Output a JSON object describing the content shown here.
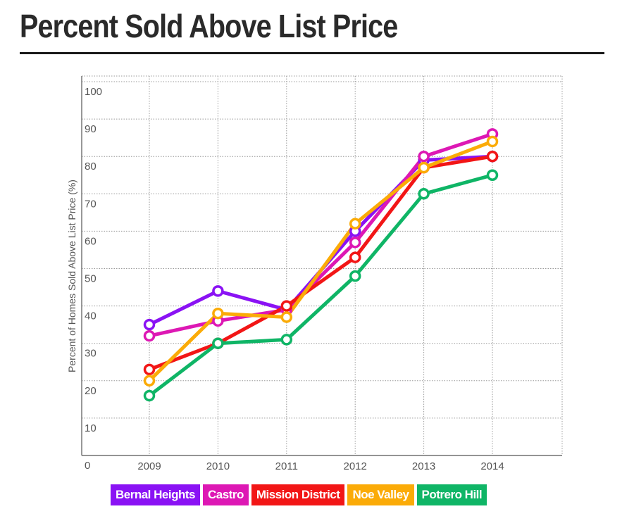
{
  "page": {
    "title": "Percent Sold Above List Price"
  },
  "chart_data": {
    "type": "line",
    "title": "Percent Sold Above List Price",
    "xlabel": "",
    "ylabel": "Percent of Homes Sold Above List Price (%)",
    "x": [
      "2009",
      "2010",
      "2011",
      "2012",
      "2013",
      "2014"
    ],
    "ylim": [
      0,
      100
    ],
    "y_ticks": [
      "0",
      "10",
      "20",
      "30",
      "40",
      "50",
      "60",
      "70",
      "80",
      "90",
      "100"
    ],
    "grid": true,
    "legend_position": "bottom",
    "series": [
      {
        "name": "Bernal Heights",
        "color": "#8a12f4",
        "values": [
          35,
          44,
          39,
          60,
          79,
          80
        ]
      },
      {
        "name": "Castro",
        "color": "#dd18b4",
        "values": [
          32,
          36,
          39,
          57,
          80,
          86
        ]
      },
      {
        "name": "Mission District",
        "color": "#f21616",
        "values": [
          23,
          30,
          40,
          53,
          77,
          80
        ]
      },
      {
        "name": "Noe Valley",
        "color": "#fbab07",
        "values": [
          20,
          38,
          37,
          62,
          77,
          84
        ]
      },
      {
        "name": "Potrero Hill",
        "color": "#0fb566",
        "values": [
          16,
          30,
          31,
          48,
          70,
          75
        ]
      }
    ]
  }
}
